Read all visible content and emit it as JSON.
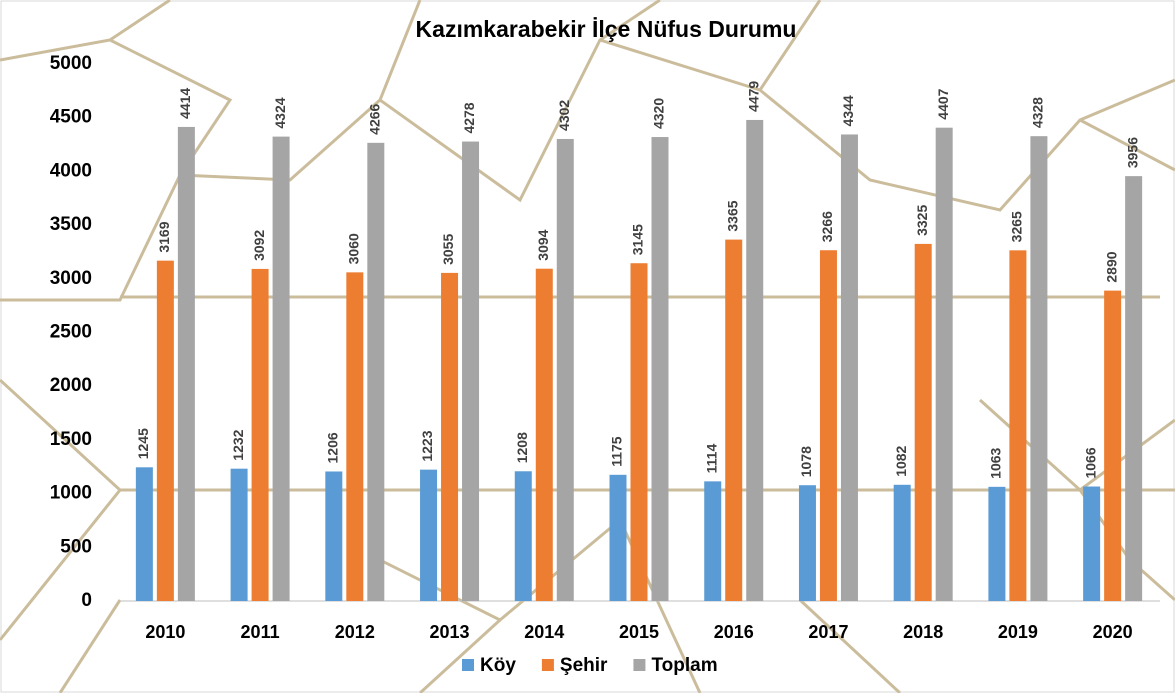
{
  "chart_data": {
    "type": "bar",
    "title": "Kazımkarabekir İlçe Nüfus Durumu",
    "categories": [
      "2010",
      "2011",
      "2012",
      "2013",
      "2014",
      "2015",
      "2016",
      "2017",
      "2018",
      "2019",
      "2020"
    ],
    "series": [
      {
        "name": "Köy",
        "color": "#5b9bd5",
        "values": [
          1245,
          1232,
          1206,
          1223,
          1208,
          1175,
          1114,
          1078,
          1082,
          1063,
          1066
        ]
      },
      {
        "name": "Şehir",
        "color": "#ed7d31",
        "values": [
          3169,
          3092,
          3060,
          3055,
          3094,
          3145,
          3365,
          3266,
          3325,
          3265,
          2890
        ]
      },
      {
        "name": "Toplam",
        "color": "#a5a5a5",
        "values": [
          4414,
          4324,
          4266,
          4278,
          4302,
          4320,
          4479,
          4344,
          4407,
          4328,
          3956
        ]
      }
    ],
    "ylim": [
      0,
      5000
    ],
    "yticks": [
      0,
      500,
      1000,
      1500,
      2000,
      2500,
      3000,
      3500,
      4000,
      4500,
      5000
    ],
    "grid": false,
    "legend": "bottom"
  }
}
